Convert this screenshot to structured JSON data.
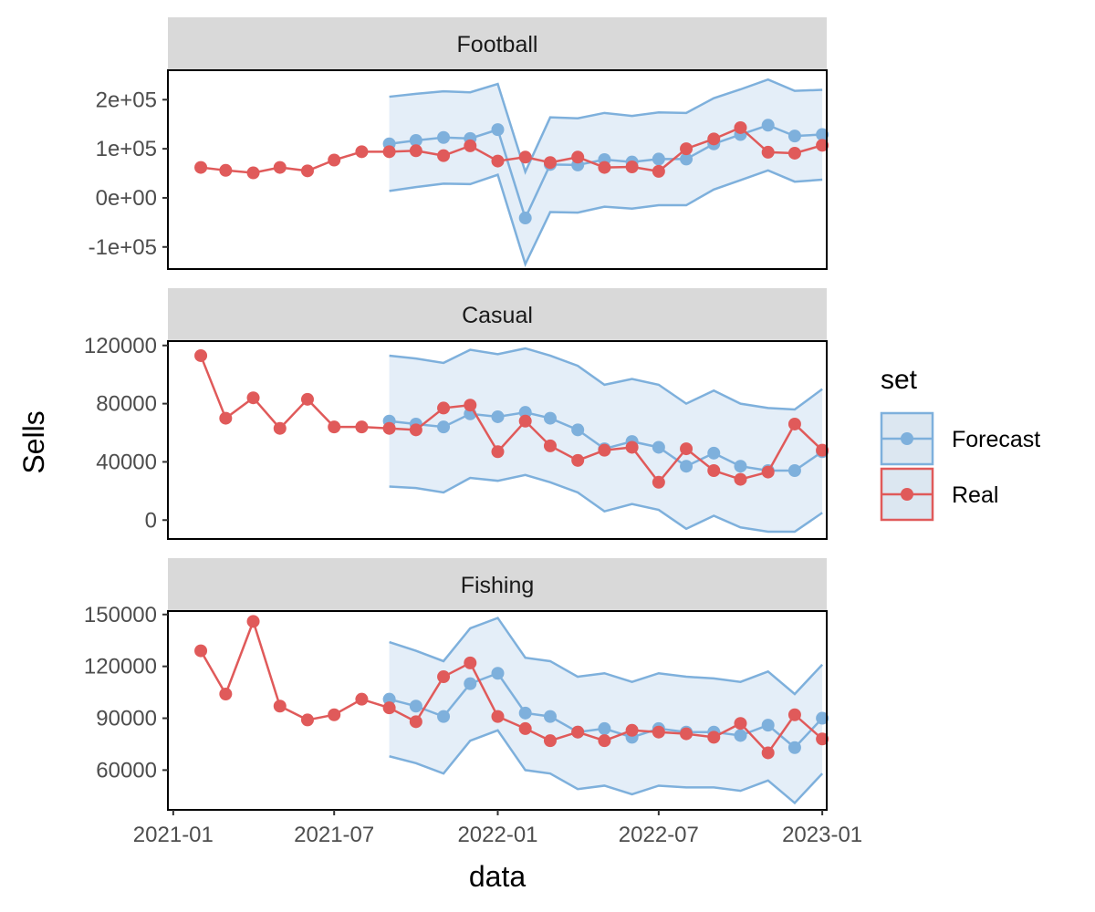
{
  "chart_data": {
    "type": "line",
    "xlabel": "data",
    "ylabel": "Sells",
    "x_ticks": [
      "2021-01",
      "2021-07",
      "2022-01",
      "2022-07",
      "2023-01"
    ],
    "x_range": [
      "2020-12-26",
      "2023-01-06"
    ],
    "legend": {
      "title": "set",
      "placement": "right",
      "entries": [
        {
          "label": "Forecast",
          "color": "#7eb0dc"
        },
        {
          "label": "Real",
          "color": "#e05a5a"
        }
      ]
    },
    "colors": {
      "forecast": "#7eb0dc",
      "real": "#e05a5a",
      "band_fill": "#e4eef8",
      "strip_bg": "#d9d9d9"
    },
    "panels": [
      {
        "title": "Football",
        "ylim": [
          -145000,
          260000
        ],
        "yticks": [
          -100000,
          0,
          100000,
          200000
        ],
        "ytick_labels": [
          "-1e+05",
          "0e+00",
          "1e+05",
          "2e+05"
        ],
        "real": {
          "x": [
            "2021-02-01",
            "2021-03-01",
            "2021-04-01",
            "2021-05-01",
            "2021-06-01",
            "2021-07-01",
            "2021-08-01",
            "2021-09-01",
            "2021-10-01",
            "2021-11-01",
            "2021-12-01",
            "2022-01-01",
            "2022-02-01",
            "2022-03-01",
            "2022-04-01",
            "2022-05-01",
            "2022-06-01",
            "2022-07-01",
            "2022-08-01",
            "2022-09-01",
            "2022-10-01",
            "2022-11-01",
            "2022-12-01",
            "2023-01-01"
          ],
          "y": [
            62000,
            56000,
            51000,
            62000,
            55000,
            77000,
            94000,
            94000,
            96000,
            86000,
            106000,
            75000,
            83000,
            72000,
            83000,
            62000,
            63000,
            54000,
            100000,
            120000,
            143000,
            93000,
            91000,
            107000
          ]
        },
        "forecast": {
          "x": [
            "2021-09-01",
            "2021-10-01",
            "2021-11-01",
            "2021-12-01",
            "2022-01-01",
            "2022-02-01",
            "2022-03-01",
            "2022-04-01",
            "2022-05-01",
            "2022-06-01",
            "2022-07-01",
            "2022-08-01",
            "2022-09-01",
            "2022-10-01",
            "2022-11-01",
            "2022-12-01",
            "2023-01-01"
          ],
          "y": [
            110000,
            117000,
            123000,
            121000,
            139000,
            -41000,
            68000,
            67000,
            78000,
            73000,
            79000,
            79000,
            110000,
            129000,
            148000,
            126000,
            129000
          ],
          "lower": [
            14000,
            22000,
            29000,
            28000,
            47000,
            -135000,
            -29000,
            -30000,
            -18000,
            -22000,
            -15000,
            -15000,
            17000,
            36000,
            56000,
            33000,
            37000
          ],
          "upper": [
            206000,
            212000,
            217000,
            215000,
            232000,
            53000,
            164000,
            162000,
            173000,
            167000,
            174000,
            173000,
            203000,
            221000,
            241000,
            218000,
            220000
          ]
        }
      },
      {
        "title": "Casual",
        "ylim": [
          -13000,
          123000
        ],
        "yticks": [
          0,
          40000,
          80000,
          120000
        ],
        "ytick_labels": [
          "0",
          "40000",
          "80000",
          "120000"
        ],
        "real": {
          "x": [
            "2021-02-01",
            "2021-03-01",
            "2021-04-01",
            "2021-05-01",
            "2021-06-01",
            "2021-07-01",
            "2021-08-01",
            "2021-09-01",
            "2021-10-01",
            "2021-11-01",
            "2021-12-01",
            "2022-01-01",
            "2022-02-01",
            "2022-03-01",
            "2022-04-01",
            "2022-05-01",
            "2022-06-01",
            "2022-07-01",
            "2022-08-01",
            "2022-09-01",
            "2022-10-01",
            "2022-11-01",
            "2022-12-01",
            "2023-01-01"
          ],
          "y": [
            113000,
            70000,
            84000,
            63000,
            83000,
            64000,
            64000,
            63000,
            62000,
            77000,
            79000,
            47000,
            68000,
            51000,
            41000,
            48000,
            50000,
            26000,
            49000,
            34000,
            28000,
            33000,
            66000,
            48000
          ]
        },
        "forecast": {
          "x": [
            "2021-09-01",
            "2021-10-01",
            "2021-11-01",
            "2021-12-01",
            "2022-01-01",
            "2022-02-01",
            "2022-03-01",
            "2022-04-01",
            "2022-05-01",
            "2022-06-01",
            "2022-07-01",
            "2022-08-01",
            "2022-09-01",
            "2022-10-01",
            "2022-11-01",
            "2022-12-01",
            "2023-01-01"
          ],
          "y": [
            68000,
            66000,
            64000,
            73000,
            71000,
            74000,
            70000,
            62000,
            49000,
            54000,
            50000,
            37000,
            46000,
            37000,
            34000,
            34000,
            47000
          ],
          "lower": [
            23000,
            22000,
            19000,
            29000,
            27000,
            31000,
            26000,
            19000,
            6000,
            11000,
            7000,
            -6000,
            3000,
            -5000,
            -8000,
            -8000,
            5000
          ],
          "upper": [
            113000,
            111000,
            108000,
            117000,
            114000,
            118000,
            113000,
            106000,
            93000,
            97000,
            93000,
            80000,
            89000,
            80000,
            77000,
            76000,
            90000
          ]
        }
      },
      {
        "title": "Fishing",
        "ylim": [
          37000,
          152000
        ],
        "yticks": [
          60000,
          90000,
          120000,
          150000
        ],
        "ytick_labels": [
          "60000",
          "90000",
          "120000",
          "150000"
        ],
        "real": {
          "x": [
            "2021-02-01",
            "2021-03-01",
            "2021-04-01",
            "2021-05-01",
            "2021-06-01",
            "2021-07-01",
            "2021-08-01",
            "2021-09-01",
            "2021-10-01",
            "2021-11-01",
            "2021-12-01",
            "2022-01-01",
            "2022-02-01",
            "2022-03-01",
            "2022-04-01",
            "2022-05-01",
            "2022-06-01",
            "2022-07-01",
            "2022-08-01",
            "2022-09-01",
            "2022-10-01",
            "2022-11-01",
            "2022-12-01",
            "2023-01-01"
          ],
          "y": [
            129000,
            104000,
            146000,
            97000,
            89000,
            92000,
            101000,
            96000,
            88000,
            114000,
            122000,
            91000,
            84000,
            77000,
            82000,
            77000,
            83000,
            82000,
            81000,
            79000,
            87000,
            70000,
            92000,
            78000
          ]
        },
        "forecast": {
          "x": [
            "2021-09-01",
            "2021-10-01",
            "2021-11-01",
            "2021-12-01",
            "2022-01-01",
            "2022-02-01",
            "2022-03-01",
            "2022-04-01",
            "2022-05-01",
            "2022-06-01",
            "2022-07-01",
            "2022-08-01",
            "2022-09-01",
            "2022-10-01",
            "2022-11-01",
            "2022-12-01",
            "2023-01-01"
          ],
          "y": [
            101000,
            97000,
            91000,
            110000,
            116000,
            93000,
            91000,
            82000,
            84000,
            79000,
            84000,
            82000,
            82000,
            80000,
            86000,
            73000,
            90000
          ],
          "lower": [
            68000,
            64000,
            58000,
            77000,
            83000,
            60000,
            58000,
            49000,
            51000,
            46000,
            51000,
            50000,
            50000,
            48000,
            54000,
            41000,
            58000
          ],
          "upper": [
            134000,
            129000,
            123000,
            142000,
            148000,
            125000,
            123000,
            114000,
            116000,
            111000,
            116000,
            114000,
            113000,
            111000,
            117000,
            104000,
            121000
          ]
        }
      }
    ]
  }
}
